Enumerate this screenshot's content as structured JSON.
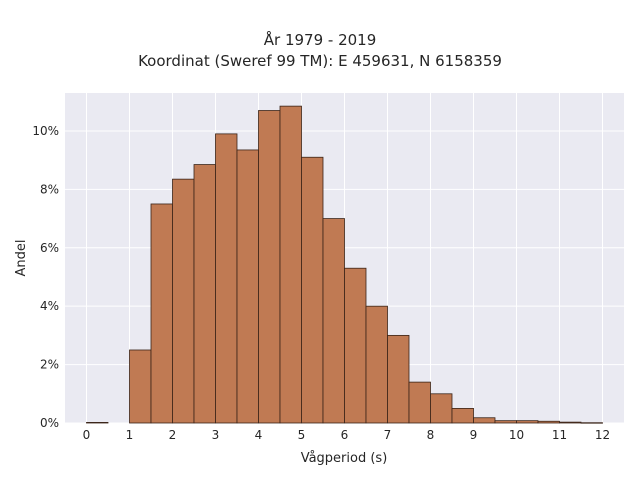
{
  "chart_data": {
    "type": "bar",
    "title": "År 1979 - 2019",
    "subtitle": "Koordinat (Sweref 99 TM): E 459631, N 6158359",
    "xlabel": "Vågperiod (s)",
    "ylabel": "Andel",
    "x_ticks": [
      "0",
      "1",
      "2",
      "3",
      "4",
      "5",
      "6",
      "7",
      "8",
      "9",
      "10",
      "11",
      "12"
    ],
    "y_ticks": [
      "0%",
      "2%",
      "4%",
      "6%",
      "8%",
      "10%"
    ],
    "xlim": [
      -0.5,
      12.5
    ],
    "ylim": [
      0,
      11.3
    ],
    "grid": true,
    "bar_color": "#c07a53",
    "edge_color": "#3a2418",
    "background_color": "#eaeaf2",
    "bins": [
      {
        "x0": 0.0,
        "x1": 0.5,
        "value": 0.02
      },
      {
        "x0": 1.0,
        "x1": 1.5,
        "value": 2.5
      },
      {
        "x0": 1.5,
        "x1": 2.0,
        "value": 7.5
      },
      {
        "x0": 2.0,
        "x1": 2.5,
        "value": 8.35
      },
      {
        "x0": 2.5,
        "x1": 3.0,
        "value": 8.85
      },
      {
        "x0": 3.0,
        "x1": 3.5,
        "value": 9.9
      },
      {
        "x0": 3.5,
        "x1": 4.0,
        "value": 9.35
      },
      {
        "x0": 4.0,
        "x1": 4.5,
        "value": 10.7
      },
      {
        "x0": 4.5,
        "x1": 5.0,
        "value": 10.85
      },
      {
        "x0": 5.0,
        "x1": 5.5,
        "value": 9.1
      },
      {
        "x0": 5.5,
        "x1": 6.0,
        "value": 7.0
      },
      {
        "x0": 6.0,
        "x1": 6.5,
        "value": 5.3
      },
      {
        "x0": 6.5,
        "x1": 7.0,
        "value": 4.0
      },
      {
        "x0": 7.0,
        "x1": 7.5,
        "value": 3.0
      },
      {
        "x0": 7.5,
        "x1": 8.0,
        "value": 1.4
      },
      {
        "x0": 8.0,
        "x1": 8.5,
        "value": 1.0
      },
      {
        "x0": 8.5,
        "x1": 9.0,
        "value": 0.5
      },
      {
        "x0": 9.0,
        "x1": 9.5,
        "value": 0.18
      },
      {
        "x0": 9.5,
        "x1": 10.0,
        "value": 0.08
      },
      {
        "x0": 10.0,
        "x1": 10.5,
        "value": 0.08
      },
      {
        "x0": 10.5,
        "x1": 11.0,
        "value": 0.06
      },
      {
        "x0": 11.0,
        "x1": 11.5,
        "value": 0.03
      },
      {
        "x0": 11.5,
        "x1": 12.0,
        "value": 0.01
      }
    ]
  }
}
